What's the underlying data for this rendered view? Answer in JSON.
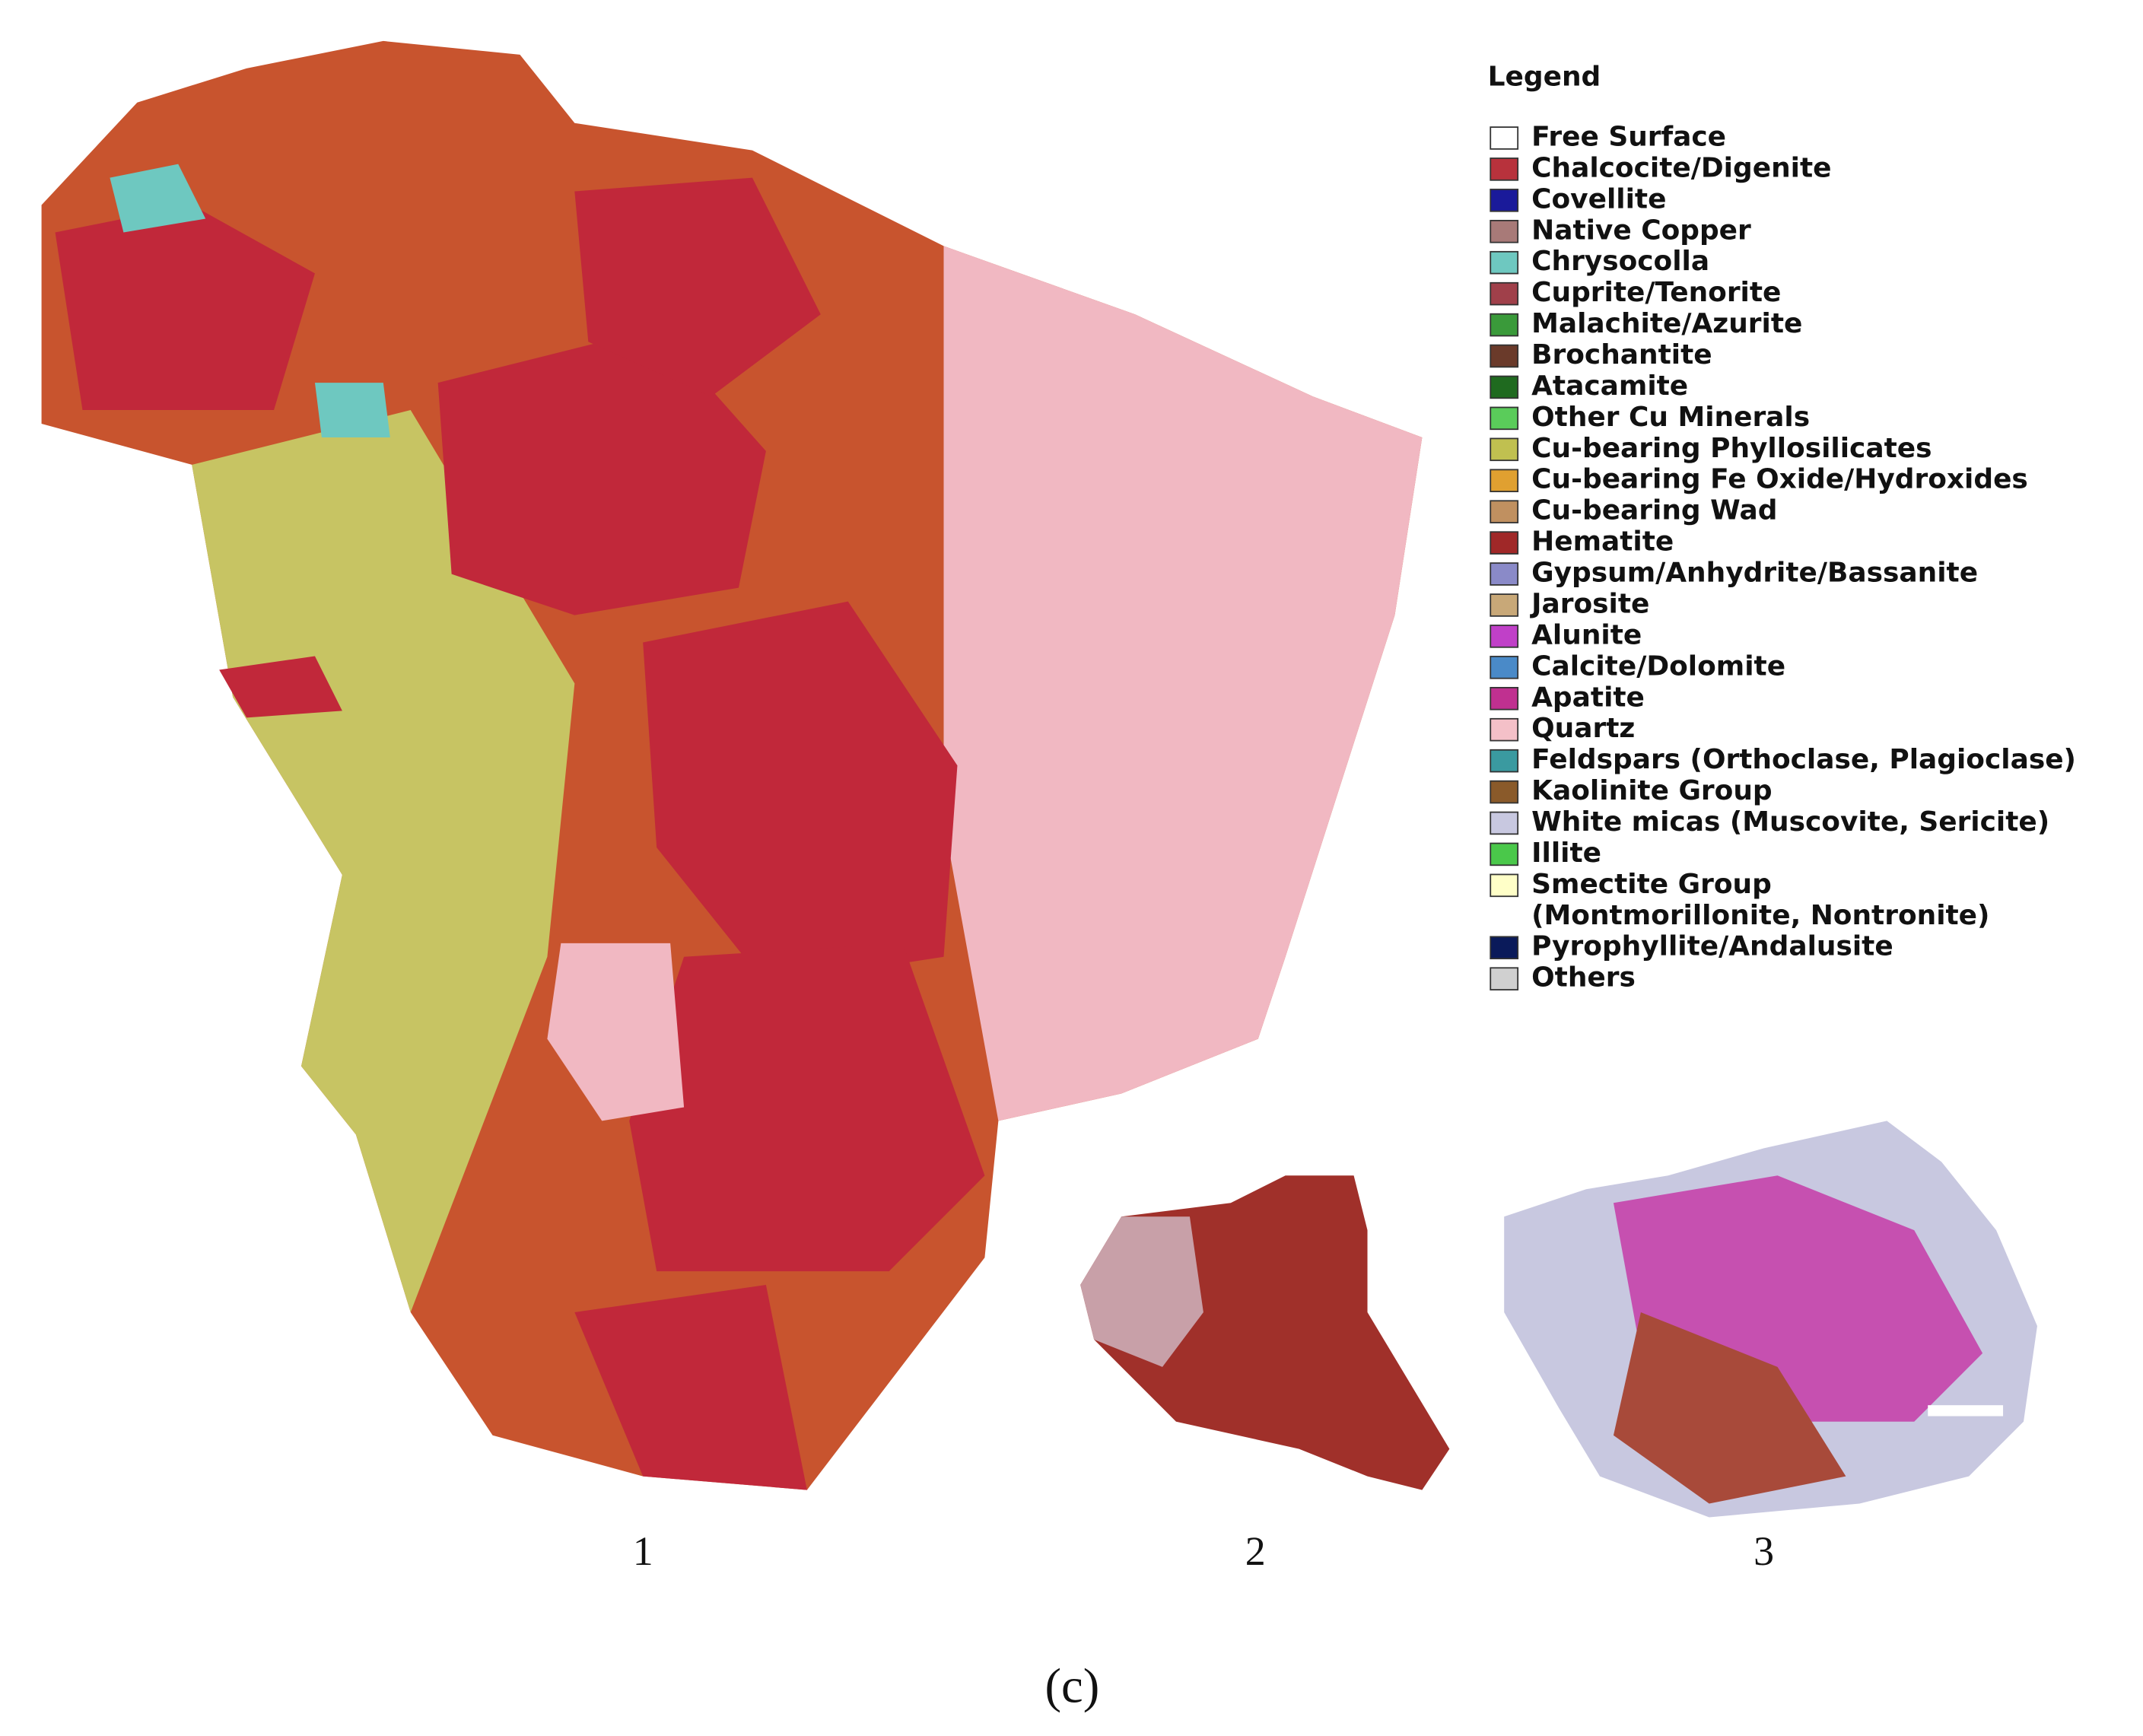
{
  "legend": {
    "title": "Legend",
    "items": [
      {
        "label": "Free Surface",
        "color": "#ffffff"
      },
      {
        "label": "Chalcocite/Digenite",
        "color": "#b8323c"
      },
      {
        "label": "Covellite",
        "color": "#1a1a9a"
      },
      {
        "label": "Native Copper",
        "color": "#a87a78"
      },
      {
        "label": "Chrysocolla",
        "color": "#6ec8c0"
      },
      {
        "label": "Cuprite/Tenorite",
        "color": "#a0404a"
      },
      {
        "label": "Malachite/Azurite",
        "color": "#3a9a3a"
      },
      {
        "label": "Brochantite",
        "color": "#6a3a2a"
      },
      {
        "label": "Atacamite",
        "color": "#1f6a1f"
      },
      {
        "label": "Other Cu Minerals",
        "color": "#5acc5a"
      },
      {
        "label": "Cu-bearing Phyllosilicates",
        "color": "#c0c050"
      },
      {
        "label": "Cu-bearing Fe Oxide/Hydroxides",
        "color": "#e0a030"
      },
      {
        "label": "Cu-bearing Wad",
        "color": "#c09060"
      },
      {
        "label": "Hematite",
        "color": "#a02828"
      },
      {
        "label": "Gypsum/Anhydrite/Bassanite",
        "color": "#8a8ac8"
      },
      {
        "label": "Jarosite",
        "color": "#c8a878"
      },
      {
        "label": "Alunite",
        "color": "#c040c8"
      },
      {
        "label": "Calcite/Dolomite",
        "color": "#4a8ac8"
      },
      {
        "label": "Apatite",
        "color": "#c03090"
      },
      {
        "label": "Quartz",
        "color": "#f4c0c8"
      },
      {
        "label": "Feldspars (Orthoclase, Plagioclase)",
        "color": "#3a9aa0"
      },
      {
        "label": "Kaolinite Group",
        "color": "#8a5a2a"
      },
      {
        "label": "White micas (Muscovite, Sericite)",
        "color": "#c8c8e0"
      },
      {
        "label": "Illite",
        "color": "#4ac84a"
      },
      {
        "label": "Smectite Group",
        "label2": "(Montmorillonite, Nontronite)",
        "color": "#ffffc8"
      },
      {
        "label": "Pyrophyllite/Andalusite",
        "color": "#0a1a5a"
      },
      {
        "label": "Others",
        "color": "#d0d0d0"
      }
    ]
  },
  "samples": [
    "1",
    "2",
    "3"
  ],
  "caption": "(c)"
}
